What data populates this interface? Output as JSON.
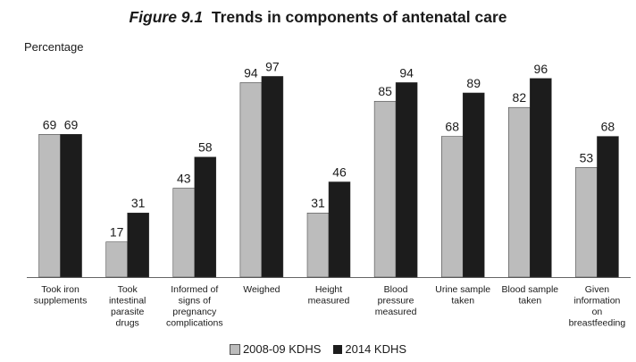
{
  "title": {
    "figure": "Figure 9.1",
    "text": "Trends in components of antenatal care"
  },
  "chart_data": {
    "type": "bar",
    "title": "Figure 9.1  Trends in components of antenatal care",
    "xlabel": "",
    "ylabel": "Percentage",
    "ylim": [
      0,
      100
    ],
    "grid": false,
    "legend_position": "bottom",
    "categories": [
      [
        "Took iron",
        "supplements"
      ],
      [
        "Took",
        "intestinal",
        "parasite",
        "drugs"
      ],
      [
        "Informed of",
        "signs of",
        "pregnancy",
        "complications"
      ],
      [
        "Weighed"
      ],
      [
        "Height",
        "measured"
      ],
      [
        "Blood",
        "pressure",
        "measured"
      ],
      [
        "Urine sample",
        "taken"
      ],
      [
        "Blood sample",
        "taken"
      ],
      [
        "Given",
        "information",
        "on",
        "breastfeeding"
      ]
    ],
    "series": [
      {
        "name": "2008-09 KDHS",
        "color": "#bcbcbc",
        "values": [
          69,
          17,
          43,
          94,
          31,
          85,
          68,
          82,
          53
        ]
      },
      {
        "name": "2014 KDHS",
        "color": "#1c1c1c",
        "values": [
          69,
          31,
          58,
          97,
          46,
          94,
          89,
          96,
          68
        ]
      }
    ]
  }
}
